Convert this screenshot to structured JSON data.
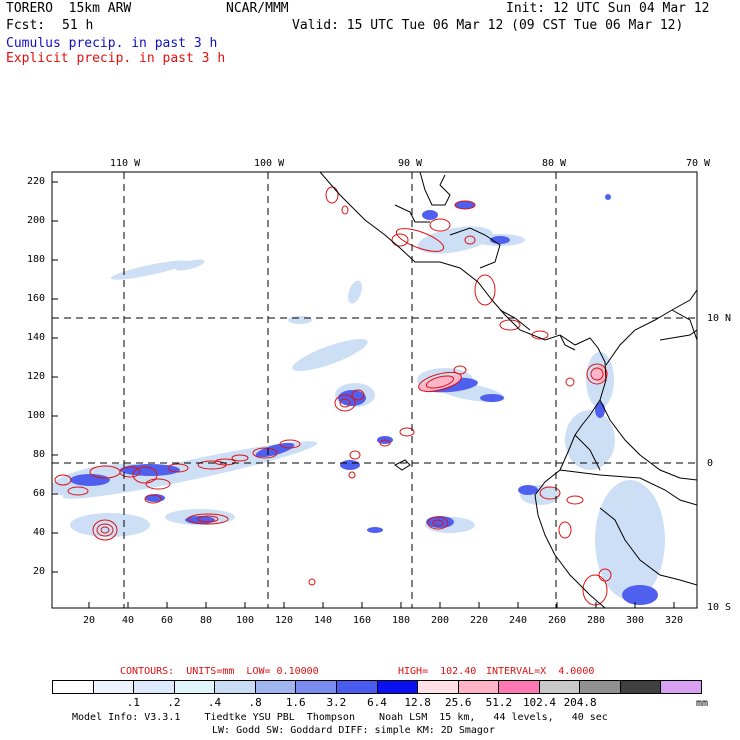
{
  "header": {
    "model": "TORERO  15km ARW",
    "org": "NCAR/MMM",
    "init": "Init: 12 UTC Sun 04 Mar 12",
    "fcst_label": "Fcst:",
    "fcst_value": "51 h",
    "valid": "Valid: 15 UTC Tue 06 Mar 12 (09 CST Tue 06 Mar 12)",
    "cumulus": "Cumulus precip. in past 3 h",
    "explicit": "Explicit precip. in past 3 h"
  },
  "map": {
    "lon_labels": [
      "110 W",
      "100 W",
      "90 W",
      "80 W",
      "70 W"
    ],
    "lat_labels": [
      "10 N",
      "0",
      "10 S"
    ],
    "y_ticks": [
      "220",
      "200",
      "180",
      "160",
      "140",
      "120",
      "100",
      "80",
      "60",
      "40",
      "20"
    ],
    "x_ticks": [
      "20",
      "40",
      "60",
      "80",
      "100",
      "120",
      "140",
      "160",
      "180",
      "200",
      "220",
      "240",
      "260",
      "280",
      "300",
      "320"
    ]
  },
  "contours": {
    "units_label": "CONTOURS:  UNITS=mm  LOW= 0.10000",
    "high_label": "HIGH=  102.40",
    "interval_label": "INTERVAL=X  4.0000"
  },
  "legend": {
    "colors": [
      "#ffffff",
      "#eef4ff",
      "#dde9ff",
      "#e0f5fa",
      "#c8dcf5",
      "#a0b4f0",
      "#7a8cf0",
      "#4a5cf0",
      "#0a10f0",
      "#ffe0e6",
      "#ffb4c8",
      "#ff78b4",
      "#c8c8c8",
      "#909090",
      "#404040",
      "#d8a0f0"
    ],
    "ticks": [
      ".1",
      ".2",
      ".4",
      ".8",
      "1.6",
      "3.2",
      "6.4",
      "12.8",
      "25.6",
      "51.2",
      "102.4",
      "204.8"
    ],
    "units": "mm"
  },
  "footer": {
    "line1": "Model Info: V3.3.1    Tiedtke YSU PBL  Thompson    Noah LSM  15 km,   44 levels,   40 sec",
    "line2": "LW: Godd SW: Goddard DIFF: simple KM: 2D Smagor"
  }
}
